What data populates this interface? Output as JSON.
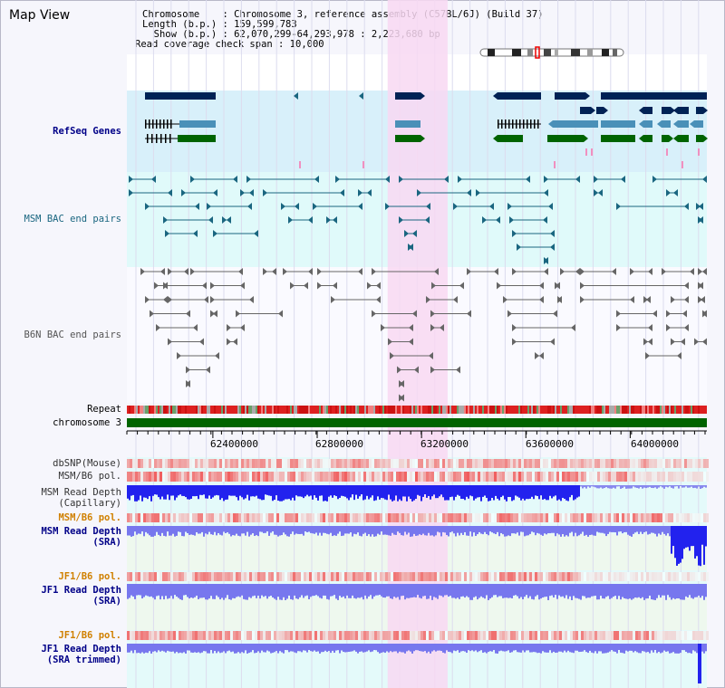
{
  "app_title": "Map View",
  "info": {
    "chromosome_line": "Chromosome    : Chromosome 3, reference assembly (C57BL/6J) (Build 37)",
    "length_line": "Length (b.p.) : 159,599,783",
    "show_line": "  Show (b.p.) : 62,070,299-64,293,978 : 2,223,680 bp",
    "span_line": "Read coverage check span : 10,000"
  },
  "tracks": {
    "refseq_genes": "RefSeq Genes",
    "msm_bac": "MSM BAC end pairs",
    "b6n_bac": "B6N BAC end pairs",
    "repeat": "Repeat",
    "chromosome": "chromosome 3",
    "dbsnp": "dbSNP(Mouse)",
    "msm_b6_pol_1": "MSM/B6 pol.",
    "msm_depth_cap_1": "MSM Read Depth",
    "msm_depth_cap_2": "(Capillary)",
    "msm_b6_pol_2": "MSM/B6 pol.",
    "msm_depth_sra_1": "MSM Read Depth",
    "msm_depth_sra_2": "(SRA)",
    "jf1_pol_1": "JF1/B6 pol.",
    "jf1_depth_sra_1": "JF1 Read Depth",
    "jf1_depth_sra_2": "(SRA)",
    "jf1_pol_2": "JF1/B6 pol.",
    "jf1_depth_trim_1": "JF1 Read Depth",
    "jf1_depth_trim_2": "(SRA trimmed)"
  },
  "axis": {
    "ticks": [
      {
        "pos": 62400000,
        "label": "62400000"
      },
      {
        "pos": 62800000,
        "label": "62800000"
      },
      {
        "pos": 63200000,
        "label": "63200000"
      },
      {
        "pos": 63600000,
        "label": "63600000"
      },
      {
        "pos": 64000000,
        "label": "64000000"
      }
    ],
    "start": 62070299,
    "end": 64293978,
    "highlight": [
      63070000,
      63300000
    ]
  },
  "colors": {
    "refseq_bg": "#d8f0fa",
    "msm_bg": "#e0fafa",
    "highlight": "#f8d8f2",
    "gene": "#002255",
    "transcript": "#4a90b8",
    "cds": "#006400",
    "msm_pair": "#1a6680",
    "b6n_pair": "#666666",
    "repeat_red": "#dd2020",
    "chrom_green": "#006400",
    "depth_blue": "#2222ee",
    "depth_lavender": "#7777ee"
  }
}
